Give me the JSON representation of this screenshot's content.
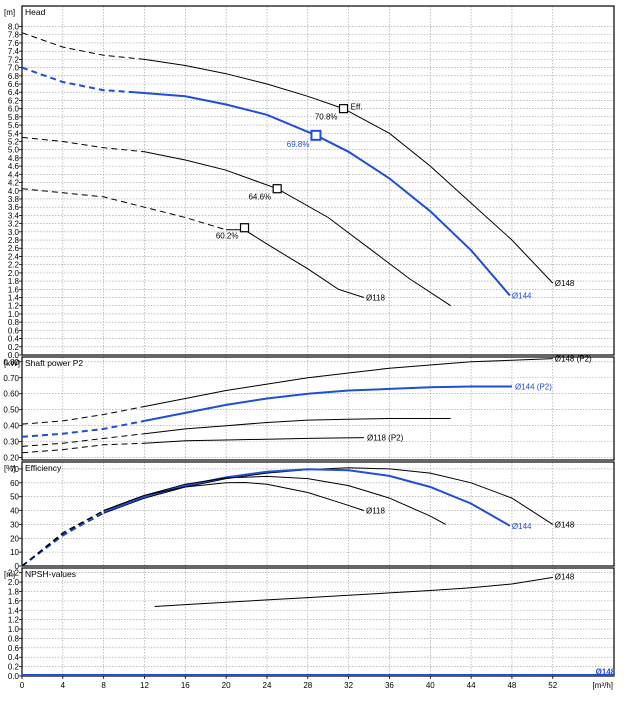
{
  "colors": {
    "black": "#000000",
    "blue": "#1f4fd6",
    "grid": "#9a9a9a"
  },
  "x_axis": {
    "range": [
      0,
      58
    ],
    "ticks": [
      0,
      4,
      8,
      12,
      16,
      20,
      24,
      28,
      32,
      36,
      40,
      44,
      48,
      52
    ],
    "unit": "[m³/h]"
  },
  "chart_data": [
    {
      "type": "line",
      "title": "Head",
      "unit": "[m]",
      "ylim": [
        0,
        8.5
      ],
      "yticks": [
        "0.0",
        "0.2",
        "0.4",
        "0.6",
        "0.8",
        "1.0",
        "1.2",
        "1.4",
        "1.6",
        "1.8",
        "2.0",
        "2.2",
        "2.4",
        "2.6",
        "2.8",
        "3.0",
        "3.2",
        "3.4",
        "3.6",
        "3.8",
        "4.0",
        "4.2",
        "4.4",
        "4.6",
        "4.8",
        "5.0",
        "5.2",
        "5.4",
        "5.6",
        "5.8",
        "6.0",
        "6.2",
        "6.4",
        "6.6",
        "6.8",
        "7.0",
        "7.2",
        "7.4",
        "7.6",
        "7.8",
        "8.0"
      ],
      "series": [
        {
          "name": "Ø148",
          "color": "black",
          "dashed_until": 12,
          "points": [
            [
              0,
              7.85
            ],
            [
              4,
              7.5
            ],
            [
              8,
              7.3
            ],
            [
              12,
              7.2
            ],
            [
              16,
              7.05
            ],
            [
              20,
              6.85
            ],
            [
              24,
              6.6
            ],
            [
              28,
              6.3
            ],
            [
              31.5,
              6.0
            ],
            [
              36,
              5.4
            ],
            [
              40,
              4.6
            ],
            [
              44,
              3.7
            ],
            [
              48,
              2.8
            ],
            [
              52,
              1.75
            ]
          ]
        },
        {
          "name": "Ø144",
          "color": "blue",
          "dashed_until": 11,
          "points": [
            [
              0,
              7.0
            ],
            [
              4,
              6.65
            ],
            [
              8,
              6.45
            ],
            [
              11,
              6.4
            ],
            [
              16,
              6.3
            ],
            [
              20,
              6.1
            ],
            [
              24,
              5.85
            ],
            [
              28.8,
              5.35
            ],
            [
              32,
              4.95
            ],
            [
              36,
              4.3
            ],
            [
              40,
              3.5
            ],
            [
              44,
              2.55
            ],
            [
              47.8,
              1.45
            ]
          ]
        },
        {
          "name": "Ø118",
          "color": "black",
          "dashed_until": 17,
          "points": [
            [
              0,
              4.05
            ],
            [
              4,
              3.95
            ],
            [
              8,
              3.85
            ],
            [
              12,
              3.6
            ],
            [
              16,
              3.35
            ],
            [
              20,
              3.05
            ],
            [
              21.8,
              3.05
            ],
            [
              24,
              2.7
            ],
            [
              28,
              2.1
            ],
            [
              31,
              1.6
            ],
            [
              33.5,
              1.4
            ]
          ]
        },
        {
          "name": "",
          "color": "black",
          "dashed_until": 9,
          "points": [
            [
              0,
              5.3
            ],
            [
              4,
              5.2
            ],
            [
              8,
              5.05
            ],
            [
              12,
              4.95
            ],
            [
              16,
              4.75
            ],
            [
              20,
              4.5
            ],
            [
              25,
              4.05
            ],
            [
              30,
              3.35
            ],
            [
              34,
              2.6
            ],
            [
              38,
              1.85
            ],
            [
              42,
              1.2
            ]
          ]
        }
      ],
      "markers": [
        {
          "x": 31.5,
          "y": 6.0,
          "label": "70.8%",
          "color": "black",
          "size": 8
        },
        {
          "x": 28.8,
          "y": 5.35,
          "label": "69.8%",
          "color": "blue",
          "size": 9
        },
        {
          "x": 25.0,
          "y": 4.05,
          "label": "64.6%",
          "color": "black",
          "size": 8
        },
        {
          "x": 21.8,
          "y": 3.1,
          "label": "60.2%",
          "color": "black",
          "size": 8
        }
      ],
      "annotations": [
        {
          "text": "Eff.",
          "x": 32.2,
          "y": 6.05
        },
        {
          "text": "Ø148",
          "x": 52.2,
          "y": 1.75,
          "color": "black"
        },
        {
          "text": "Ø144",
          "x": 48.0,
          "y": 1.45,
          "color": "blue"
        },
        {
          "text": "Ø118",
          "x": 33.7,
          "y": 1.4,
          "color": "black"
        }
      ]
    },
    {
      "type": "line",
      "title": "Shaft power P2",
      "unit": "[kW]",
      "ylim": [
        0.185,
        0.83
      ],
      "yticks": [
        "0.20",
        "0.30",
        "0.40",
        "0.50",
        "0.60",
        "0.70",
        "0.80"
      ],
      "series": [
        {
          "name": "Ø148 (P2)",
          "color": "black",
          "dashed_until": 12,
          "points": [
            [
              0,
              0.41
            ],
            [
              4,
              0.43
            ],
            [
              8,
              0.47
            ],
            [
              12,
              0.52
            ],
            [
              16,
              0.57
            ],
            [
              20,
              0.62
            ],
            [
              24,
              0.66
            ],
            [
              28,
              0.7
            ],
            [
              32,
              0.73
            ],
            [
              36,
              0.76
            ],
            [
              40,
              0.78
            ],
            [
              44,
              0.8
            ],
            [
              48,
              0.81
            ],
            [
              52,
              0.82
            ]
          ]
        },
        {
          "name": "Ø144 (P2)",
          "color": "blue",
          "dashed_until": 11,
          "points": [
            [
              0,
              0.33
            ],
            [
              4,
              0.35
            ],
            [
              8,
              0.38
            ],
            [
              12,
              0.43
            ],
            [
              16,
              0.48
            ],
            [
              20,
              0.53
            ],
            [
              24,
              0.57
            ],
            [
              28,
              0.6
            ],
            [
              32,
              0.62
            ],
            [
              36,
              0.63
            ],
            [
              40,
              0.64
            ],
            [
              44,
              0.645
            ],
            [
              48,
              0.645
            ]
          ]
        },
        {
          "name": "",
          "color": "black",
          "dashed_until": 9,
          "points": [
            [
              0,
              0.27
            ],
            [
              4,
              0.29
            ],
            [
              8,
              0.32
            ],
            [
              12,
              0.35
            ],
            [
              16,
              0.38
            ],
            [
              20,
              0.4
            ],
            [
              24,
              0.42
            ],
            [
              28,
              0.435
            ],
            [
              32,
              0.44
            ],
            [
              36,
              0.445
            ],
            [
              40,
              0.445
            ],
            [
              42,
              0.445
            ]
          ]
        },
        {
          "name": "Ø118 (P2)",
          "color": "black",
          "dashed_until": 9,
          "points": [
            [
              0,
              0.23
            ],
            [
              4,
              0.25
            ],
            [
              8,
              0.28
            ],
            [
              12,
              0.29
            ],
            [
              16,
              0.305
            ],
            [
              20,
              0.31
            ],
            [
              24,
              0.315
            ],
            [
              28,
              0.32
            ],
            [
              33.5,
              0.325
            ]
          ]
        }
      ],
      "annotations": [
        {
          "text": "Ø148 (P2)",
          "x": 52.2,
          "y": 0.82,
          "color": "black"
        },
        {
          "text": "Ø144 (P2)",
          "x": 48.3,
          "y": 0.645,
          "color": "blue"
        },
        {
          "text": "Ø118 (P2)",
          "x": 33.8,
          "y": 0.325,
          "color": "black"
        }
      ]
    },
    {
      "type": "line",
      "title": "Efficiency",
      "unit": "[%]",
      "ylim": [
        0,
        75
      ],
      "yticks": [
        "0",
        "10",
        "20",
        "30",
        "40",
        "50",
        "60",
        "70"
      ],
      "series": [
        {
          "name": "Ø148",
          "color": "black",
          "dashed_until": 8,
          "points": [
            [
              0,
              0
            ],
            [
              4,
              22
            ],
            [
              8,
              38
            ],
            [
              12,
              49
            ],
            [
              16,
              57
            ],
            [
              20,
              63
            ],
            [
              24,
              67
            ],
            [
              28,
              69.5
            ],
            [
              32,
              70.8
            ],
            [
              36,
              70
            ],
            [
              40,
              67
            ],
            [
              44,
              60
            ],
            [
              48,
              49
            ],
            [
              52,
              30
            ]
          ]
        },
        {
          "name": "Ø144",
          "color": "blue",
          "dashed_until": 8,
          "points": [
            [
              0,
              0
            ],
            [
              4,
              22
            ],
            [
              8,
              39
            ],
            [
              12,
              50
            ],
            [
              16,
              58
            ],
            [
              20,
              64
            ],
            [
              24,
              68
            ],
            [
              28,
              69.8
            ],
            [
              32,
              69
            ],
            [
              36,
              65
            ],
            [
              40,
              57
            ],
            [
              44,
              45
            ],
            [
              47.8,
              29
            ]
          ]
        },
        {
          "name": "",
          "color": "black",
          "dashed_until": 8,
          "points": [
            [
              0,
              0
            ],
            [
              4,
              23
            ],
            [
              8,
              40
            ],
            [
              12,
              51
            ],
            [
              16,
              59
            ],
            [
              20,
              63.5
            ],
            [
              24,
              64.6
            ],
            [
              28,
              63
            ],
            [
              32,
              58
            ],
            [
              36,
              49
            ],
            [
              40,
              36
            ],
            [
              41.5,
              30
            ]
          ]
        },
        {
          "name": "Ø118",
          "color": "black",
          "dashed_until": 8,
          "points": [
            [
              0,
              0
            ],
            [
              4,
              24
            ],
            [
              8,
              40
            ],
            [
              12,
              51
            ],
            [
              16,
              57
            ],
            [
              20,
              60
            ],
            [
              21.8,
              60.2
            ],
            [
              24,
              59
            ],
            [
              28,
              53
            ],
            [
              31,
              46
            ],
            [
              33.5,
              40
            ]
          ]
        }
      ],
      "annotations": [
        {
          "text": "Ø148",
          "x": 52.2,
          "y": 30,
          "color": "black"
        },
        {
          "text": "Ø144",
          "x": 48.0,
          "y": 29,
          "color": "blue"
        },
        {
          "text": "Ø118",
          "x": 33.7,
          "y": 40,
          "color": "black"
        }
      ]
    },
    {
      "type": "line",
      "title": "NPSH-values",
      "unit": "[m]",
      "ylim": [
        0,
        2.3
      ],
      "yticks": [
        "0.0",
        "0.2",
        "0.4",
        "0.6",
        "0.8",
        "1.0",
        "1.2",
        "1.4",
        "1.6",
        "1.8",
        "2.0",
        "2.2"
      ],
      "series": [
        {
          "name": "Ø148",
          "color": "black",
          "dashed_until": 0,
          "points": [
            [
              13,
              1.48
            ],
            [
              16,
              1.52
            ],
            [
              20,
              1.57
            ],
            [
              24,
              1.62
            ],
            [
              28,
              1.67
            ],
            [
              32,
              1.72
            ],
            [
              36,
              1.77
            ],
            [
              40,
              1.82
            ],
            [
              44,
              1.88
            ],
            [
              48,
              1.96
            ],
            [
              52,
              2.1
            ]
          ]
        }
      ],
      "annotations": [
        {
          "text": "Ø148",
          "x": 52.2,
          "y": 2.12,
          "color": "black"
        },
        {
          "text": "Ø148",
          "x": 56.2,
          "y": 0.1,
          "color": "blue"
        }
      ]
    }
  ]
}
